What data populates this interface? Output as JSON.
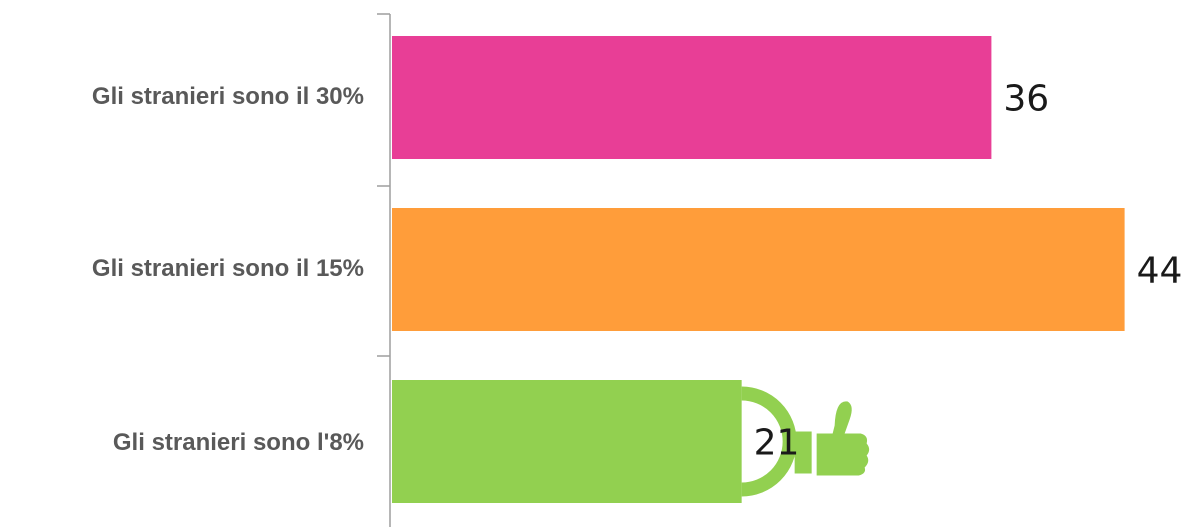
{
  "chart_data": {
    "type": "bar",
    "orientation": "horizontal",
    "categories": [
      "Gli stranieri sono il 30%",
      "Gli stranieri sono il 15%",
      "Gli stranieri sono l'8%"
    ],
    "values": [
      36,
      44,
      21
    ],
    "colors": [
      "#e83e96",
      "#ff9d3a",
      "#92d050"
    ],
    "data_labels": [
      "36",
      "44",
      "21"
    ],
    "xlim": [
      0,
      45
    ],
    "grid": false,
    "legend": "none",
    "highlight": {
      "category_index": 2,
      "icon": "thumbs-up-icon",
      "color": "#92d050"
    }
  }
}
